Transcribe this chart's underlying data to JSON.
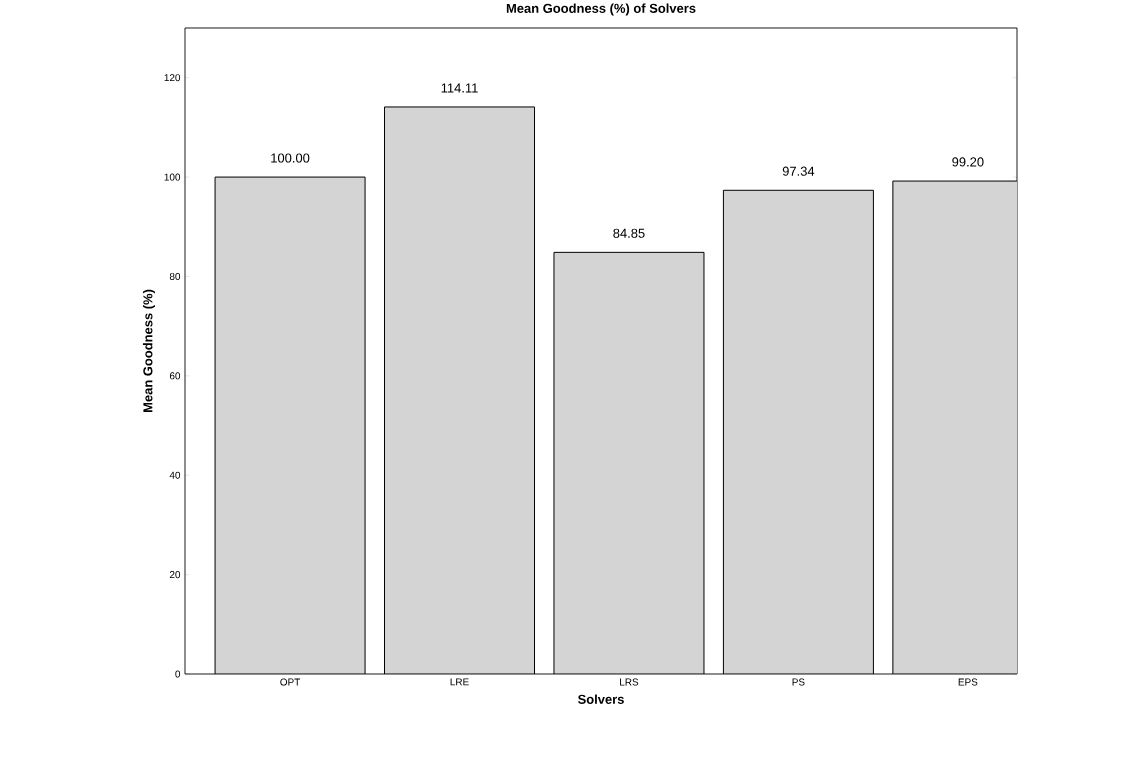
{
  "chart_data": {
    "type": "bar",
    "title": "Mean Goodness (%) of Solvers",
    "xlabel": "Solvers",
    "ylabel": "Mean Goodness (%)",
    "categories": [
      "OPT",
      "LRE",
      "LRS",
      "PS",
      "EPS"
    ],
    "values": [
      100.0,
      114.11,
      84.85,
      97.34,
      99.2
    ],
    "value_labels": [
      "100.00",
      "114.11",
      "84.85",
      "97.34",
      "99.20"
    ],
    "color": "#d4d4d4",
    "ylim": [
      0,
      130
    ],
    "yticks": [
      0,
      20,
      40,
      60,
      80,
      100,
      120
    ],
    "grid": false
  }
}
